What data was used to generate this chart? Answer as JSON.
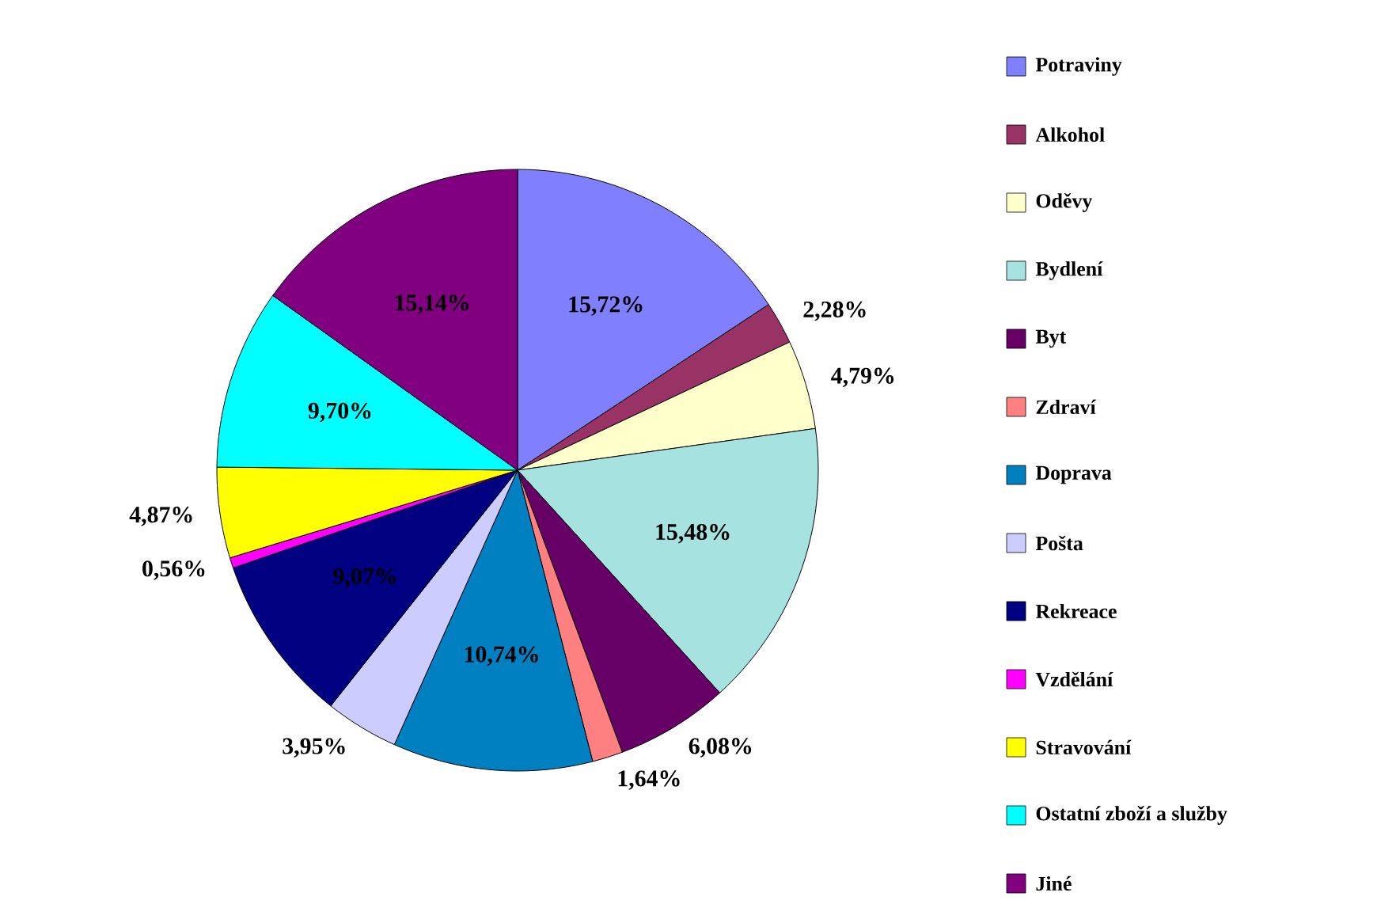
{
  "chart_data": {
    "type": "pie",
    "categories": [
      "Potraviny",
      "Alkohol",
      "Oděvy",
      "Bydlení",
      "Byt",
      "Zdraví",
      "Doprava",
      "Pošta",
      "Rekreace",
      "Vzdělání",
      "Stravování",
      "Ostatní zboží a služby",
      "Jiné"
    ],
    "values": [
      15.72,
      2.28,
      4.79,
      15.48,
      6.08,
      1.64,
      10.74,
      3.95,
      9.07,
      0.56,
      4.87,
      9.7,
      15.14
    ],
    "value_labels": [
      "15,72%",
      "2,28%",
      "4,79%",
      "15,48%",
      "6,08%",
      "1,64%",
      "10,74%",
      "3,95%",
      "9,07%",
      "0,56%",
      "4,87%",
      "9,70%",
      "15,14%"
    ],
    "colors": [
      "#8080ff",
      "#993366",
      "#ffffcc",
      "#a6e3e0",
      "#660066",
      "#ff8080",
      "#0080c0",
      "#ccccff",
      "#000080",
      "#ff00ff",
      "#ffff00",
      "#00ffff",
      "#800080"
    ],
    "legend": "right"
  }
}
